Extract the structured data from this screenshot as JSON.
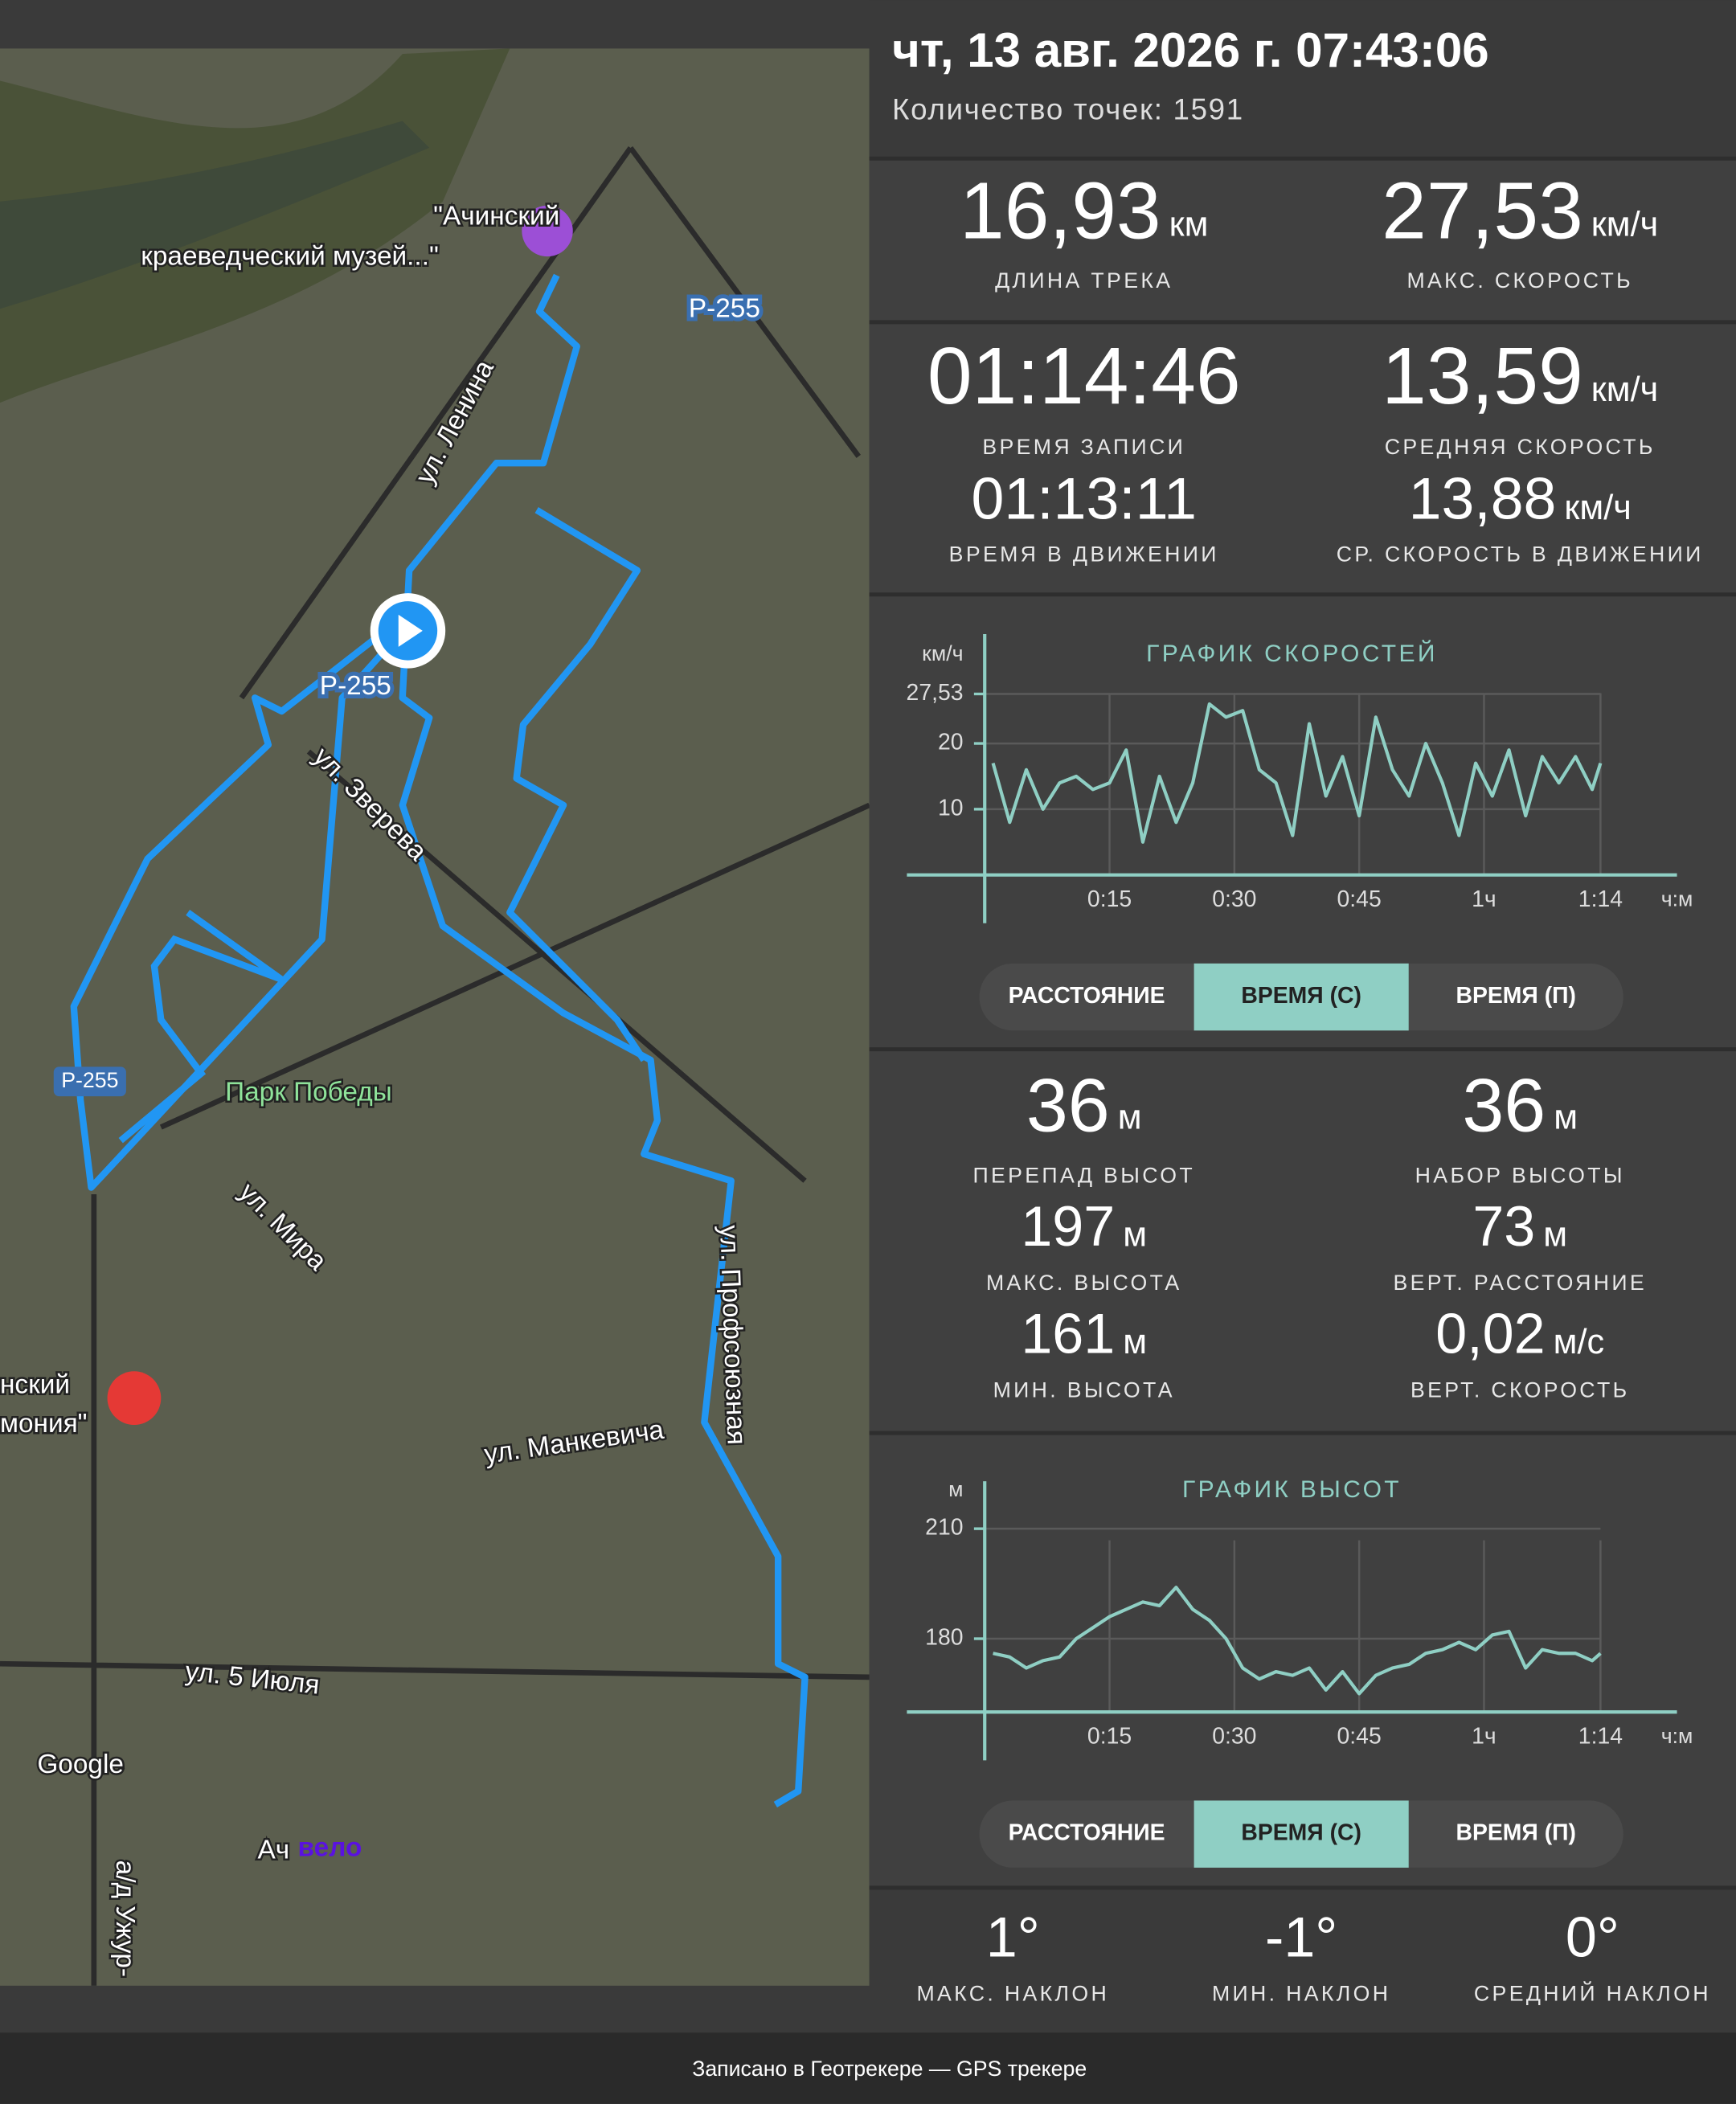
{
  "header": {
    "datetime": "чт, 13 авг. 2026 г. 07:43:06",
    "points": "Количество точек: 1591"
  },
  "stats": [
    {
      "value": "16,93",
      "unit": "км",
      "label": "ДЛИНА ТРЕКА"
    },
    {
      "value": "27,53",
      "unit": "км/ч",
      "label": "МАКС. СКОРОСТЬ"
    },
    {
      "value": "01:14:46",
      "label": "ВРЕМЯ ЗАПИСИ"
    },
    {
      "value": "13,59",
      "unit": "км/ч",
      "label": "СРЕДНЯЯ СКОРОСТЬ"
    },
    {
      "value": "01:13:11",
      "label": "ВРЕМЯ В ДВИЖЕНИИ"
    },
    {
      "value": "13,88",
      "unit": "км/ч",
      "label": "СР. СКОРОСТЬ В ДВИЖЕНИИ"
    }
  ],
  "elevation_stats": [
    {
      "value": "36",
      "unit": "м",
      "label": "ПЕРЕПАД ВЫСОТ"
    },
    {
      "value": "36",
      "unit": "м",
      "label": "НАБОР ВЫСОТЫ"
    },
    {
      "value": "197",
      "unit": "м",
      "label": "МАКС. ВЫСОТА"
    },
    {
      "value": "73",
      "unit": "м",
      "label": "ВЕРТ. РАССТОЯНИЕ"
    },
    {
      "value": "161",
      "unit": "м",
      "label": "МИН. ВЫСОТА"
    },
    {
      "value": "0,02",
      "unit": "м/с",
      "label": "ВЕРТ. СКОРОСТЬ"
    }
  ],
  "slope_stats": [
    {
      "value": "1°",
      "label": "МАКС. НАКЛОН"
    },
    {
      "value": "-1°",
      "label": "МИН. НАКЛОН"
    },
    {
      "value": "0°",
      "label": "СРЕДНИЙ НАКЛОН"
    }
  ],
  "charts": [
    {
      "type": "line",
      "title": "ГРАФИК СКОРОСТЕЙ",
      "y_unit": "км/ч",
      "x_unit": "ч:м",
      "color": "#8fcfc4",
      "x": [
        1,
        3,
        5,
        7,
        9,
        11,
        13,
        15,
        17,
        19,
        21,
        23,
        25,
        27,
        29,
        31,
        33,
        35,
        37,
        39,
        41,
        43,
        45,
        47,
        49,
        51,
        53,
        55,
        57,
        59,
        61,
        63,
        65,
        67,
        69,
        71,
        73,
        74
      ],
      "values": [
        17,
        8,
        16,
        10,
        14,
        15,
        13,
        14,
        19,
        5,
        15,
        8,
        14,
        26,
        24,
        25,
        16,
        14,
        6,
        23,
        12,
        18,
        9,
        24,
        16,
        12,
        20,
        14,
        6,
        17,
        12,
        19,
        9,
        18,
        14,
        18,
        13,
        17
      ],
      "xlim": [
        0,
        74
      ],
      "xticks": [
        {
          "value": 15,
          "label": "0:15"
        },
        {
          "value": 30,
          "label": "0:30"
        },
        {
          "value": 45,
          "label": "0:45"
        },
        {
          "value": 60,
          "label": "1ч"
        },
        {
          "value": 74,
          "label": "1:14"
        }
      ],
      "ylim": [
        0,
        35
      ],
      "yticks": [
        10,
        20,
        {
          "value": 27.53,
          "label": "27,53"
        }
      ],
      "toggles": [
        "РАССТОЯНИЕ",
        "ВРЕМЯ (С)",
        "ВРЕМЯ (П)"
      ],
      "selected": 1
    },
    {
      "type": "line",
      "title": "ГРАФИК ВЫСОТ",
      "y_unit": "м",
      "x_unit": "ч:м",
      "color": "#8fcfc4",
      "x": [
        1,
        3,
        5,
        7,
        9,
        11,
        13,
        15,
        17,
        19,
        21,
        23,
        25,
        27,
        29,
        31,
        33,
        35,
        37,
        39,
        41,
        43,
        45,
        47,
        49,
        51,
        53,
        55,
        57,
        59,
        61,
        63,
        65,
        67,
        69,
        71,
        73,
        74
      ],
      "values": [
        176,
        175,
        172,
        174,
        175,
        180,
        183,
        186,
        188,
        190,
        189,
        194,
        188,
        185,
        180,
        172,
        169,
        171,
        170,
        172,
        166,
        171,
        165,
        170,
        172,
        173,
        176,
        177,
        179,
        177,
        181,
        182,
        172,
        177,
        176,
        176,
        174,
        176
      ],
      "xlim": [
        0,
        74
      ],
      "xticks": [
        {
          "value": 15,
          "label": "0:15"
        },
        {
          "value": 30,
          "label": "0:30"
        },
        {
          "value": 45,
          "label": "0:45"
        },
        {
          "value": 60,
          "label": "1ч"
        },
        {
          "value": 74,
          "label": "1:14"
        }
      ],
      "ylim": [
        160,
        220
      ],
      "yticks": [
        180,
        210
      ],
      "toggles": [
        "РАССТОЯНИЕ",
        "ВРЕМЯ (С)",
        "ВРЕМЯ (П)"
      ],
      "selected": 1
    }
  ],
  "map": {
    "labels": [
      "\"Ачинский",
      "краеведческий музей...\"",
      "ул. Ленина",
      "Р-255",
      "ул. Зверева",
      "Р-255",
      "Парк Победы",
      "ул. Мира",
      "ул. Профсоюзная",
      "нский",
      "мония\"",
      "ул. Манкевича",
      "ул. 5 Июля",
      "Google",
      "Ач",
      "вело",
      "а/д Ужур-"
    ]
  },
  "footer": "Записано в Геотрекере — GPS трекере"
}
